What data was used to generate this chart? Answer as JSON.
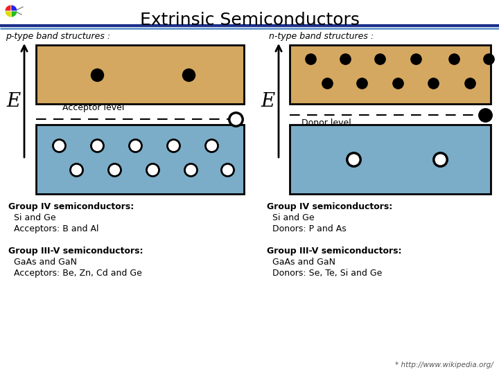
{
  "title": "Extrinsic Semiconductors",
  "title_fontsize": 18,
  "bg_color": "#ffffff",
  "tan_color": "#D4A860",
  "blue_color": "#7BADC8",
  "left_label": "p-type band structures :",
  "right_label": "n-type band structures :",
  "left_acceptor_text": "Acceptor level",
  "right_donor_text": "Donor level",
  "footer_text_left": [
    [
      "Group IV semiconductors:",
      true
    ],
    [
      "  Si and Ge",
      false
    ],
    [
      "  Acceptors: B and Al",
      false
    ],
    [
      "",
      false
    ],
    [
      "Group III-V semiconductors:",
      true
    ],
    [
      "  GaAs and GaN",
      false
    ],
    [
      "  Acceptors: Be, Zn, Cd and Ge",
      false
    ]
  ],
  "footer_text_right": [
    [
      "Group IV semiconductors:",
      true
    ],
    [
      "  Si and Ge",
      false
    ],
    [
      "  Donors: P and As",
      false
    ],
    [
      "",
      false
    ],
    [
      "Group III-V semiconductors:",
      true
    ],
    [
      "  GaAs and GaN",
      false
    ],
    [
      "  Donors: Se, Te, Si and Ge",
      false
    ]
  ],
  "E_label": "E",
  "watermark_text": "* http://www.wikipedia.org/"
}
